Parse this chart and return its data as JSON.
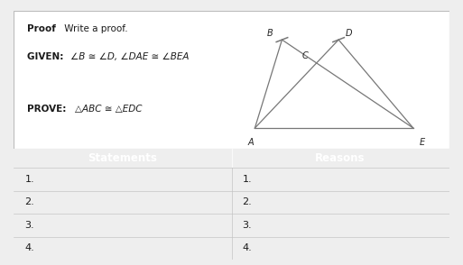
{
  "title_bold": "Proof",
  "title_normal": " Write a proof.",
  "given_label": "GIVEN: ",
  "given_text": "∠B ≅ ∠D, ∠DAE ≅ ∠BEA",
  "prove_label": "PROVE: ",
  "prove_text": "△ABC ≅ △EDC",
  "table_header": [
    "Statements",
    "Reasons"
  ],
  "table_rows": [
    "1.",
    "2.",
    "3.",
    "4."
  ],
  "header_bg": "#2E74B5",
  "header_text": "#ffffff",
  "row_bg_odd": "#d6e0ef",
  "row_bg_even": "#e4eaf4",
  "outer_bg": "#ffffff",
  "border_color": "#bbbbbb",
  "text_color": "#1a1a1a",
  "fig_bg": "#eeeeee",
  "line_color": "#777777"
}
